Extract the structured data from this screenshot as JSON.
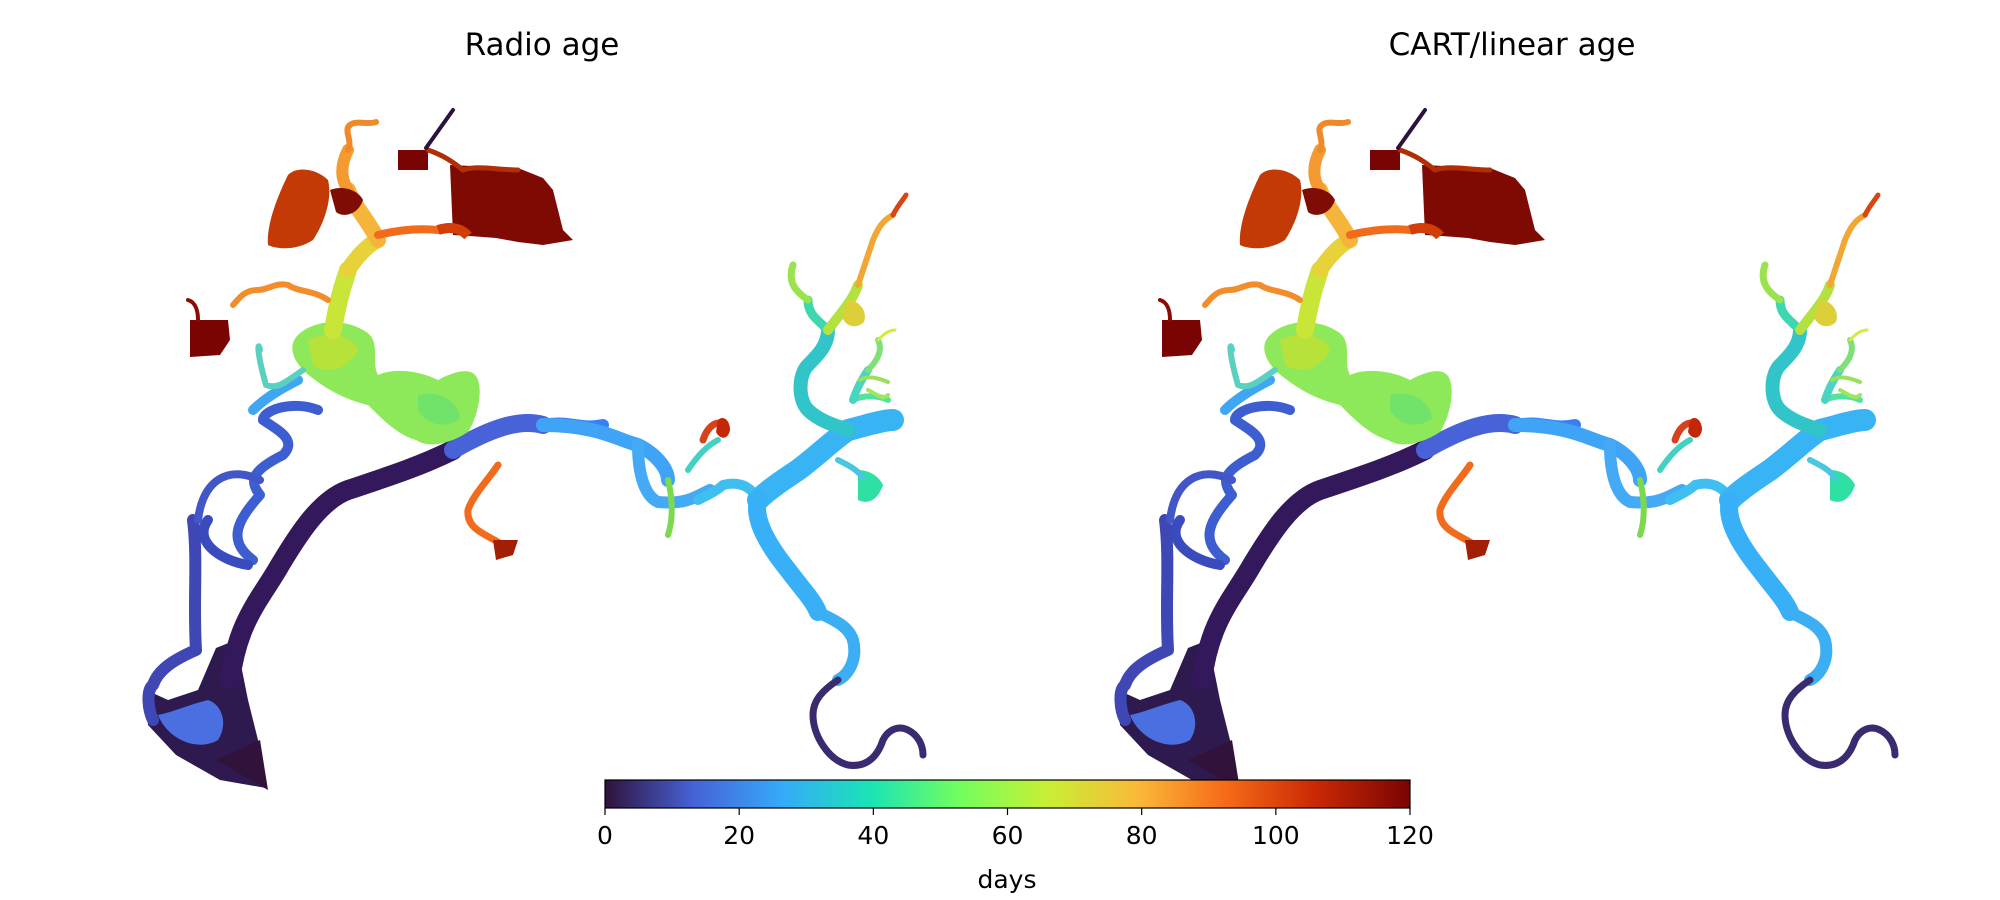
{
  "figure": {
    "panels": [
      {
        "title": "Radio age"
      },
      {
        "title": "CART/linear age"
      }
    ]
  },
  "colorbar": {
    "label": "days",
    "ticks": [
      "0",
      "20",
      "40",
      "60",
      "80",
      "100",
      "120"
    ],
    "min": 0,
    "max": 120,
    "colormap": "turbo",
    "orientation": "horizontal"
  },
  "colors": {
    "turbo_stops": [
      "#30123b",
      "#4662d7",
      "#36aaf9",
      "#1ae4b6",
      "#72fe5e",
      "#c8ef34",
      "#faba39",
      "#f66b19",
      "#cb2a04",
      "#7a0403"
    ]
  }
}
